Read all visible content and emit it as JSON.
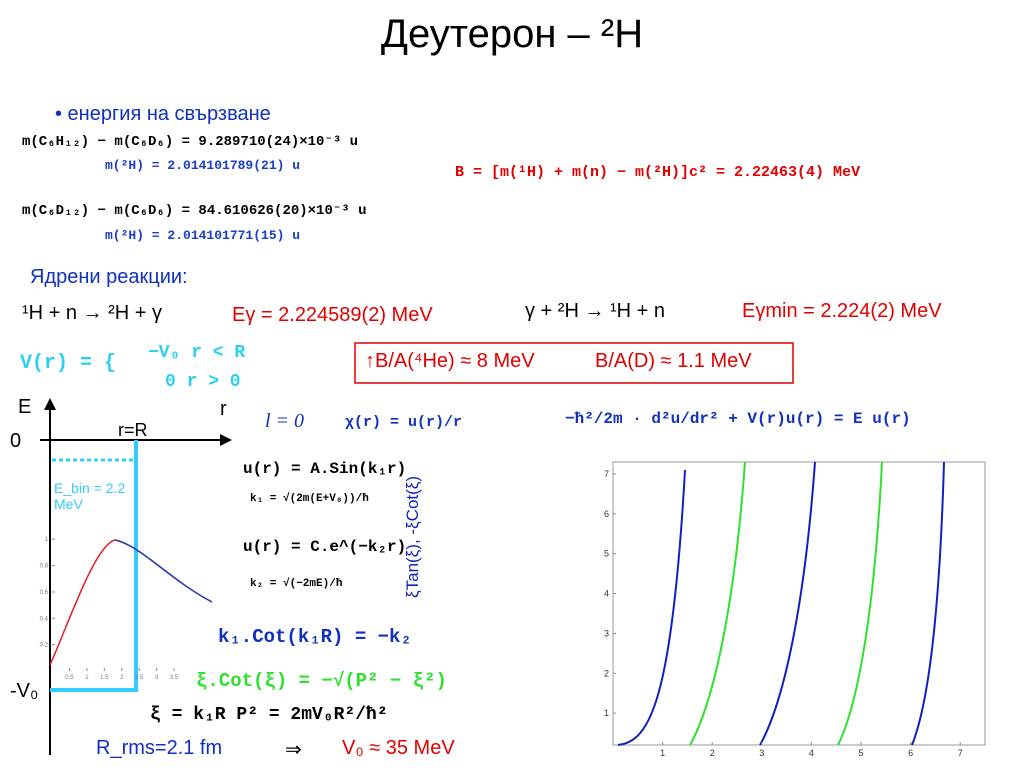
{
  "title": "Деутерон – ²H",
  "bullet": "• енергия на свързване",
  "formulas": {
    "m1": "m(C₆H₁₂) − m(C₆D₆) = 9.289710(24)×10⁻³ u",
    "mH1": "m(²H) = 2.014101789(21) u",
    "B": "B = [m(¹H) + m(n) − m(²H)]c² = 2.22463(4) MeV",
    "m2": "m(C₆D₁₂) − m(C₆D₆) = 84.610626(20)×10⁻³ u",
    "mH2": "m(²H) = 2.014101771(15) u"
  },
  "reactions": {
    "heading": "Ядрени реакции:",
    "r1": "¹H + n → ²H + γ",
    "e1": "Eγ = 2.224589(2) MeV",
    "r2": "γ + ²H → ¹H + n",
    "e2": "Eγmin = 2.224(2) MeV"
  },
  "potential": {
    "lhs": "V(r) = {",
    "case1": "−V₀  r < R",
    "case2": "0  r > 0"
  },
  "box": {
    "he": "↑B/A(⁴He) ≈ 8 MeV",
    "d": "B/A(D) ≈ 1.1 MeV"
  },
  "well": {
    "e_axis": "E",
    "r_axis": "r",
    "zero": "0",
    "rR": "r=R",
    "ebin": "E_bin = 2.2 MeV",
    "v0": "-V₀"
  },
  "inner_chart": {
    "xticks": [
      0.5,
      1,
      1.5,
      2,
      2.5,
      3,
      3.5
    ],
    "yticks": [
      0.2,
      0.4,
      0.6,
      0.8,
      1
    ],
    "xlim": [
      0,
      3.9
    ],
    "ylim": [
      0,
      1.07
    ]
  },
  "solution": {
    "l0": "l = 0",
    "chi": "χ(r) = u(r)/r",
    "schrod": "−ħ²/2m · d²u/dr² + V(r)u(r) = E u(r)",
    "u1": "u(r) = A.Sin(k₁r)",
    "k1": "k₁ = √(2m(E+V₀))/ħ",
    "u2": "u(r) = C.e^(−k₂r)",
    "k2": "k₂ = √(−2mE)/ħ",
    "match": "k₁.Cot(k₁R) = −k₂",
    "xi_cot": "ξ.Cot(ξ) = −√(P² − ξ²)",
    "xi_def": "ξ = k₁R      P² = 2mV₀R²/ħ²"
  },
  "right_chart": {
    "ylabel": "ξTan(ξ), -ξCot(ξ)",
    "xticks": [
      1,
      2,
      3,
      4,
      5,
      6,
      7
    ],
    "yticks": [
      1,
      2,
      3,
      4,
      5,
      6,
      7
    ],
    "xlim": [
      0,
      7.5
    ],
    "ylim": [
      0.2,
      7.3
    ]
  },
  "result": {
    "rrms": "R_rms=2.1 fm",
    "arrow": "⇒",
    "v0": "V₀ ≈ 35 MeV"
  }
}
